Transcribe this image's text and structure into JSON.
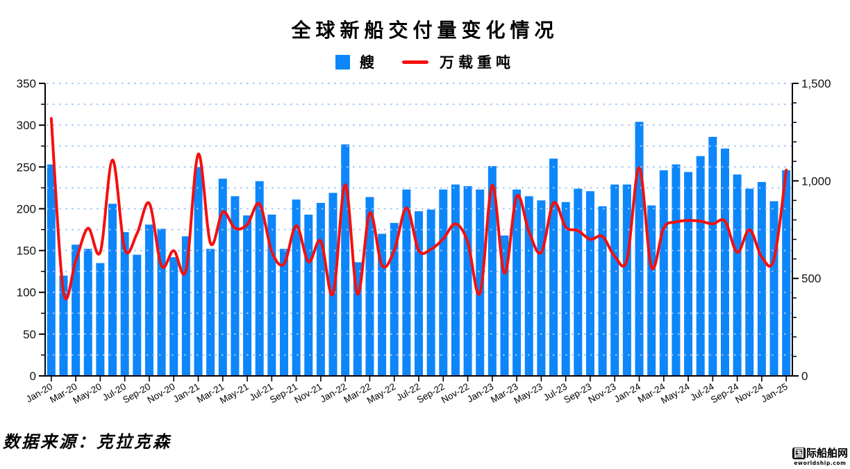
{
  "page": {
    "title": "全球新船交付量变化情况",
    "source_note": "数据来源：克拉克森",
    "logo": {
      "cn_first": "国",
      "cn_rest": "际船舶网",
      "sub": "eworldship.com"
    }
  },
  "legend": {
    "ships_label": "艘",
    "dwt_label": "万载重吨"
  },
  "colors": {
    "bar": "#0d86fa",
    "line": "#f40f0f",
    "grid": "#9fc6f8",
    "axis": "#000000",
    "tick_text": "#111111"
  },
  "chart_data": {
    "type": "bar",
    "title": "全球新船交付量变化情况",
    "xlabel": "",
    "ylabel_left": "艘",
    "ylabel_right": "万载重吨",
    "legend_position": "top",
    "grid": {
      "step": 25,
      "style": "dotted",
      "on": true
    },
    "categories": [
      "Jan-20",
      "Feb-20",
      "Mar-20",
      "Apr-20",
      "May-20",
      "Jun-20",
      "Jul-20",
      "Aug-20",
      "Sep-20",
      "Oct-20",
      "Nov-20",
      "Dec-20",
      "Jan-21",
      "Feb-21",
      "Mar-21",
      "Apr-21",
      "May-21",
      "Jun-21",
      "Jul-21",
      "Aug-21",
      "Sep-21",
      "Oct-21",
      "Nov-21",
      "Dec-21",
      "Jan-22",
      "Feb-22",
      "Mar-22",
      "Apr-22",
      "May-22",
      "Jun-22",
      "Jul-22",
      "Aug-22",
      "Sep-22",
      "Oct-22",
      "Nov-22",
      "Dec-22",
      "Jan-23",
      "Feb-23",
      "Mar-23",
      "Apr-23",
      "May-23",
      "Jun-23",
      "Jul-23",
      "Aug-23",
      "Sep-23",
      "Oct-23",
      "Nov-23",
      "Dec-23",
      "Jan-24",
      "Feb-24",
      "Mar-24",
      "Apr-24",
      "May-24",
      "Jun-24",
      "Jul-24",
      "Aug-24",
      "Sep-24",
      "Oct-24",
      "Nov-24",
      "Dec-24",
      "Jan-25"
    ],
    "x_tick_every": 2,
    "series": [
      {
        "name": "艘",
        "type": "bar",
        "axis": "left",
        "values": [
          253,
          120,
          157,
          152,
          135,
          206,
          172,
          145,
          181,
          176,
          142,
          167,
          250,
          152,
          236,
          215,
          192,
          233,
          193,
          152,
          211,
          193,
          207,
          219,
          277,
          136,
          214,
          170,
          183,
          223,
          197,
          199,
          223,
          229,
          227,
          223,
          251,
          168,
          223,
          215,
          210,
          260,
          208,
          224,
          221,
          203,
          229,
          229,
          304,
          204,
          246,
          253,
          244,
          263,
          286,
          272,
          241,
          224,
          232,
          209,
          246
        ]
      },
      {
        "name": "万载重吨",
        "type": "line",
        "axis": "right",
        "values": [
          1320,
          430,
          590,
          757,
          635,
          1107,
          650,
          730,
          885,
          564,
          642,
          543,
          1137,
          680,
          840,
          757,
          776,
          882,
          639,
          574,
          770,
          585,
          692,
          420,
          981,
          420,
          836,
          566,
          643,
          861,
          643,
          650,
          703,
          780,
          686,
          424,
          977,
          527,
          921,
          739,
          633,
          888,
          763,
          745,
          700,
          715,
          613,
          596,
          1067,
          557,
          759,
          789,
          797,
          793,
          780,
          793,
          634,
          750,
          610,
          598,
          1055
        ]
      }
    ],
    "left_axis": {
      "min": 0,
      "max": 350,
      "tick_step": 50,
      "minor_step": 25,
      "tick_values": [
        0,
        50,
        100,
        150,
        200,
        250,
        300,
        350
      ],
      "tick_labels": [
        "0",
        "50",
        "100",
        "150",
        "200",
        "250",
        "300",
        "350"
      ]
    },
    "right_axis": {
      "min": 0,
      "max": 1500,
      "tick_step": 500,
      "minor_step": 100,
      "tick_values": [
        0,
        500,
        1000,
        1500
      ],
      "tick_labels": [
        "0",
        "500",
        "1,000",
        "1,500"
      ]
    }
  }
}
